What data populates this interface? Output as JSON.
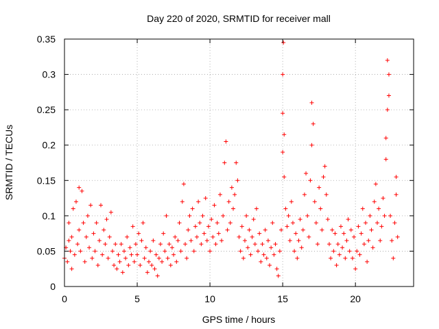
{
  "chart_data": {
    "type": "scatter",
    "title": "Day 220 of 2020, SRMTID for receiver mall",
    "xlabel": "GPS time / hours",
    "ylabel": "SRMTID / TECUs",
    "xlim": [
      0,
      24
    ],
    "ylim": [
      0,
      0.35
    ],
    "xticks": [
      0,
      5,
      10,
      15,
      20
    ],
    "xtick_labels": [
      "0",
      "5",
      "10",
      "15",
      "20"
    ],
    "yticks": [
      0,
      0.05,
      0.1,
      0.15,
      0.2,
      0.25,
      0.3,
      0.35
    ],
    "ytick_labels": [
      "0",
      "0.05",
      "0.1",
      "0.15",
      "0.2",
      "0.25",
      "0.3",
      "0.35"
    ],
    "grid": true,
    "marker": "+",
    "color": "#ff0000",
    "series": [
      {
        "name": "SRMTID",
        "points": [
          [
            0.0,
            0.04
          ],
          [
            0.1,
            0.055
          ],
          [
            0.2,
            0.035
          ],
          [
            0.3,
            0.065
          ],
          [
            0.3,
            0.09
          ],
          [
            0.4,
            0.05
          ],
          [
            0.5,
            0.025
          ],
          [
            0.5,
            0.07
          ],
          [
            0.6,
            0.11
          ],
          [
            0.7,
            0.045
          ],
          [
            0.8,
            0.12
          ],
          [
            0.9,
            0.06
          ],
          [
            1.0,
            0.08
          ],
          [
            1.0,
            0.14
          ],
          [
            1.1,
            0.05
          ],
          [
            1.2,
            0.135
          ],
          [
            1.3,
            0.09
          ],
          [
            1.4,
            0.035
          ],
          [
            1.5,
            0.07
          ],
          [
            1.6,
            0.1
          ],
          [
            1.7,
            0.055
          ],
          [
            1.8,
            0.115
          ],
          [
            1.9,
            0.04
          ],
          [
            2.0,
            0.075
          ],
          [
            2.1,
            0.05
          ],
          [
            2.2,
            0.09
          ],
          [
            2.3,
            0.03
          ],
          [
            2.4,
            0.065
          ],
          [
            2.5,
            0.115
          ],
          [
            2.6,
            0.045
          ],
          [
            2.7,
            0.08
          ],
          [
            2.8,
            0.06
          ],
          [
            2.9,
            0.095
          ],
          [
            3.0,
            0.04
          ],
          [
            3.1,
            0.07
          ],
          [
            3.2,
            0.105
          ],
          [
            3.3,
            0.05
          ],
          [
            3.4,
            0.03
          ],
          [
            3.5,
            0.06
          ],
          [
            3.6,
            0.025
          ],
          [
            3.7,
            0.045
          ],
          [
            3.8,
            0.035
          ],
          [
            3.9,
            0.06
          ],
          [
            4.0,
            0.02
          ],
          [
            4.1,
            0.05
          ],
          [
            4.2,
            0.04
          ],
          [
            4.3,
            0.07
          ],
          [
            4.4,
            0.03
          ],
          [
            4.5,
            0.055
          ],
          [
            4.6,
            0.045
          ],
          [
            4.7,
            0.085
          ],
          [
            4.8,
            0.035
          ],
          [
            4.9,
            0.06
          ],
          [
            5.0,
            0.045
          ],
          [
            5.1,
            0.075
          ],
          [
            5.2,
            0.03
          ],
          [
            5.3,
            0.065
          ],
          [
            5.4,
            0.09
          ],
          [
            5.5,
            0.04
          ],
          [
            5.6,
            0.055
          ],
          [
            5.7,
            0.02
          ],
          [
            5.8,
            0.035
          ],
          [
            5.9,
            0.05
          ],
          [
            6.0,
            0.03
          ],
          [
            6.1,
            0.065
          ],
          [
            6.2,
            0.025
          ],
          [
            6.3,
            0.045
          ],
          [
            6.4,
            0.015
          ],
          [
            6.5,
            0.04
          ],
          [
            6.6,
            0.06
          ],
          [
            6.7,
            0.035
          ],
          [
            6.8,
            0.075
          ],
          [
            6.9,
            0.05
          ],
          [
            7.0,
            0.1
          ],
          [
            7.1,
            0.04
          ],
          [
            7.2,
            0.06
          ],
          [
            7.3,
            0.03
          ],
          [
            7.4,
            0.055
          ],
          [
            7.5,
            0.045
          ],
          [
            7.6,
            0.07
          ],
          [
            7.7,
            0.035
          ],
          [
            7.8,
            0.065
          ],
          [
            7.9,
            0.09
          ],
          [
            8.0,
            0.05
          ],
          [
            8.1,
            0.12
          ],
          [
            8.2,
            0.145
          ],
          [
            8.3,
            0.06
          ],
          [
            8.4,
            0.04
          ],
          [
            8.5,
            0.08
          ],
          [
            8.6,
            0.1
          ],
          [
            8.7,
            0.065
          ],
          [
            8.8,
            0.11
          ],
          [
            8.9,
            0.05
          ],
          [
            9.0,
            0.085
          ],
          [
            9.1,
            0.07
          ],
          [
            9.2,
            0.12
          ],
          [
            9.3,
            0.09
          ],
          [
            9.4,
            0.06
          ],
          [
            9.5,
            0.1
          ],
          [
            9.6,
            0.075
          ],
          [
            9.7,
            0.125
          ],
          [
            9.8,
            0.065
          ],
          [
            9.9,
            0.085
          ],
          [
            10.0,
            0.05
          ],
          [
            10.1,
            0.095
          ],
          [
            10.2,
            0.07
          ],
          [
            10.3,
            0.115
          ],
          [
            10.4,
            0.06
          ],
          [
            10.5,
            0.09
          ],
          [
            10.6,
            0.075
          ],
          [
            10.7,
            0.13
          ],
          [
            10.8,
            0.065
          ],
          [
            10.9,
            0.1
          ],
          [
            11.0,
            0.175
          ],
          [
            11.1,
            0.205
          ],
          [
            11.2,
            0.08
          ],
          [
            11.3,
            0.12
          ],
          [
            11.4,
            0.09
          ],
          [
            11.5,
            0.14
          ],
          [
            11.6,
            0.11
          ],
          [
            11.7,
            0.13
          ],
          [
            11.8,
            0.175
          ],
          [
            11.9,
            0.15
          ],
          [
            12.0,
            0.07
          ],
          [
            12.1,
            0.05
          ],
          [
            12.2,
            0.085
          ],
          [
            12.3,
            0.04
          ],
          [
            12.4,
            0.065
          ],
          [
            12.5,
            0.1
          ],
          [
            12.6,
            0.055
          ],
          [
            12.7,
            0.08
          ],
          [
            12.8,
            0.045
          ],
          [
            12.9,
            0.07
          ],
          [
            13.0,
            0.095
          ],
          [
            13.1,
            0.06
          ],
          [
            13.2,
            0.11
          ],
          [
            13.3,
            0.05
          ],
          [
            13.4,
            0.075
          ],
          [
            13.5,
            0.035
          ],
          [
            13.6,
            0.06
          ],
          [
            13.7,
            0.045
          ],
          [
            13.8,
            0.08
          ],
          [
            13.9,
            0.04
          ],
          [
            14.0,
            0.065
          ],
          [
            14.1,
            0.03
          ],
          [
            14.2,
            0.055
          ],
          [
            14.3,
            0.09
          ],
          [
            14.4,
            0.045
          ],
          [
            14.5,
            0.06
          ],
          [
            14.6,
            0.025
          ],
          [
            14.7,
            0.015
          ],
          [
            14.8,
            0.05
          ],
          [
            14.9,
            0.08
          ],
          [
            15.0,
            0.19
          ],
          [
            15.0,
            0.245
          ],
          [
            15.0,
            0.3
          ],
          [
            15.05,
            0.345
          ],
          [
            15.1,
            0.155
          ],
          [
            15.1,
            0.215
          ],
          [
            15.2,
            0.11
          ],
          [
            15.3,
            0.085
          ],
          [
            15.4,
            0.1
          ],
          [
            15.5,
            0.065
          ],
          [
            15.6,
            0.12
          ],
          [
            15.7,
            0.09
          ],
          [
            15.8,
            0.05
          ],
          [
            15.9,
            0.075
          ],
          [
            16.0,
            0.04
          ],
          [
            16.1,
            0.065
          ],
          [
            16.2,
            0.095
          ],
          [
            16.3,
            0.055
          ],
          [
            16.4,
            0.08
          ],
          [
            16.5,
            0.13
          ],
          [
            16.6,
            0.16
          ],
          [
            16.7,
            0.1
          ],
          [
            16.8,
            0.07
          ],
          [
            16.9,
            0.15
          ],
          [
            17.0,
            0.2
          ],
          [
            17.0,
            0.26
          ],
          [
            17.1,
            0.23
          ],
          [
            17.2,
            0.12
          ],
          [
            17.3,
            0.09
          ],
          [
            17.4,
            0.06
          ],
          [
            17.5,
            0.14
          ],
          [
            17.6,
            0.11
          ],
          [
            17.7,
            0.08
          ],
          [
            17.8,
            0.155
          ],
          [
            17.9,
            0.17
          ],
          [
            18.0,
            0.13
          ],
          [
            18.1,
            0.095
          ],
          [
            18.2,
            0.06
          ],
          [
            18.3,
            0.04
          ],
          [
            18.4,
            0.08
          ],
          [
            18.5,
            0.05
          ],
          [
            18.6,
            0.075
          ],
          [
            18.7,
            0.03
          ],
          [
            18.8,
            0.06
          ],
          [
            18.9,
            0.045
          ],
          [
            19.0,
            0.085
          ],
          [
            19.1,
            0.055
          ],
          [
            19.2,
            0.075
          ],
          [
            19.3,
            0.04
          ],
          [
            19.4,
            0.065
          ],
          [
            19.5,
            0.095
          ],
          [
            19.6,
            0.05
          ],
          [
            19.7,
            0.08
          ],
          [
            19.8,
            0.04
          ],
          [
            19.9,
            0.07
          ],
          [
            20.0,
            0.025
          ],
          [
            20.1,
            0.05
          ],
          [
            20.2,
            0.085
          ],
          [
            20.3,
            0.045
          ],
          [
            20.4,
            0.075
          ],
          [
            20.5,
            0.11
          ],
          [
            20.6,
            0.06
          ],
          [
            20.7,
            0.09
          ],
          [
            20.8,
            0.035
          ],
          [
            20.9,
            0.065
          ],
          [
            21.0,
            0.1
          ],
          [
            21.1,
            0.08
          ],
          [
            21.2,
            0.055
          ],
          [
            21.3,
            0.12
          ],
          [
            21.4,
            0.145
          ],
          [
            21.5,
            0.09
          ],
          [
            21.6,
            0.11
          ],
          [
            21.7,
            0.065
          ],
          [
            21.8,
            0.085
          ],
          [
            21.9,
            0.125
          ],
          [
            22.0,
            0.1
          ],
          [
            22.1,
            0.18
          ],
          [
            22.1,
            0.21
          ],
          [
            22.2,
            0.25
          ],
          [
            22.2,
            0.32
          ],
          [
            22.3,
            0.27
          ],
          [
            22.3,
            0.3
          ],
          [
            22.4,
            0.1
          ],
          [
            22.5,
            0.065
          ],
          [
            22.6,
            0.04
          ],
          [
            22.7,
            0.09
          ],
          [
            22.8,
            0.13
          ],
          [
            22.8,
            0.155
          ],
          [
            22.9,
            0.07
          ]
        ]
      }
    ]
  }
}
